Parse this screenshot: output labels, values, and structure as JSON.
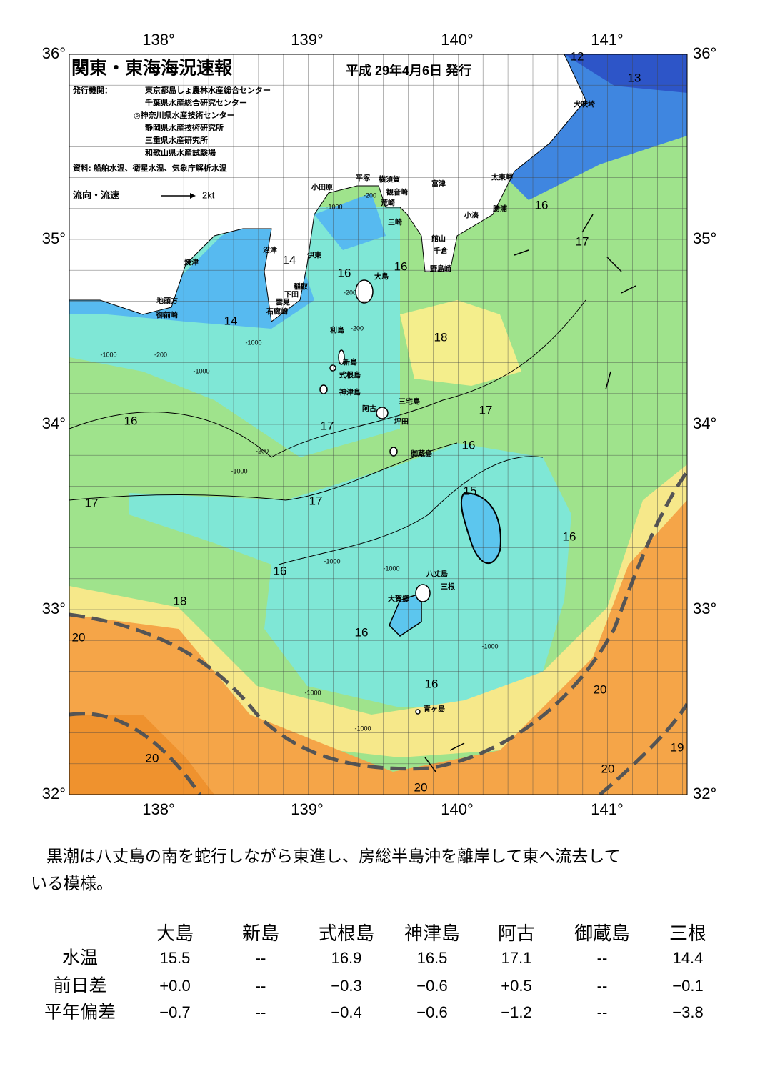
{
  "header": {
    "title": "関東・東海海況速報",
    "date": "平成 29年4月6日 発行",
    "issuer_label": "発行機関：",
    "issuers": [
      "東京都島しょ農林水産総合センター",
      "千葉県水産総合研究センター",
      "◎神奈川県水産技術センター",
      "静岡県水産技術研究所",
      "三重県水産研究所",
      "和歌山県水産試験場"
    ],
    "source": "資料: 船舶水温、衛星水温、気象庁解析水温",
    "legend": "流向・流速",
    "legend_scale": "2kt"
  },
  "map": {
    "lon_labels": [
      "138°",
      "139°",
      "140°",
      "141°"
    ],
    "lat_labels": [
      "36°",
      "35°",
      "34°",
      "33°",
      "32°"
    ],
    "places": [
      "犬吠埼",
      "太東岬",
      "勝浦",
      "小湊",
      "富津",
      "館山",
      "千倉",
      "野島崎",
      "横須賀",
      "観音崎",
      "平塚",
      "荒崎",
      "三崎",
      "小田原",
      "沼津",
      "伊東",
      "焼津",
      "稲取",
      "下田",
      "雲見",
      "石廊崎",
      "地頭方",
      "御前崎",
      "大島",
      "利島",
      "新島",
      "式根島",
      "神津島",
      "三宅島",
      "阿古",
      "坪田",
      "御蔵島",
      "八丈島",
      "三根",
      "大賀郷",
      "青ヶ島"
    ],
    "isotherms": [
      "12",
      "13",
      "14",
      "14",
      "16",
      "16",
      "16",
      "17",
      "18",
      "17",
      "16",
      "17",
      "16",
      "15",
      "17",
      "17",
      "16",
      "16",
      "18",
      "16",
      "20",
      "16",
      "20",
      "20",
      "19",
      "20",
      "20"
    ],
    "depths": [
      "-200",
      "-1000",
      "-200",
      "-1000",
      "-200",
      "-1000",
      "-200",
      "-1000",
      "-200",
      "-1000",
      "-1000",
      "-1000",
      "-1000",
      "-1000",
      "-1000"
    ]
  },
  "description": [
    "黒潮は八丈島の南を蛇行しながら東進し、房総半島沖を離岸して東へ流去して",
    "いる模様。"
  ],
  "table": {
    "columns": [
      "大島",
      "新島",
      "式根島",
      "神津島",
      "阿古",
      "御蔵島",
      "三根"
    ],
    "rows": [
      {
        "label": "水温",
        "values": [
          "15.5",
          "--",
          "16.9",
          "16.5",
          "17.1",
          "--",
          "14.4"
        ]
      },
      {
        "label": "前日差",
        "values": [
          "+0.0",
          "--",
          "−0.3",
          "−0.6",
          "+0.5",
          "--",
          "−0.1"
        ]
      },
      {
        "label": "平年偏差",
        "values": [
          "−0.7",
          "--",
          "−0.4",
          "−0.6",
          "−1.2",
          "--",
          "−3.8"
        ]
      }
    ]
  }
}
